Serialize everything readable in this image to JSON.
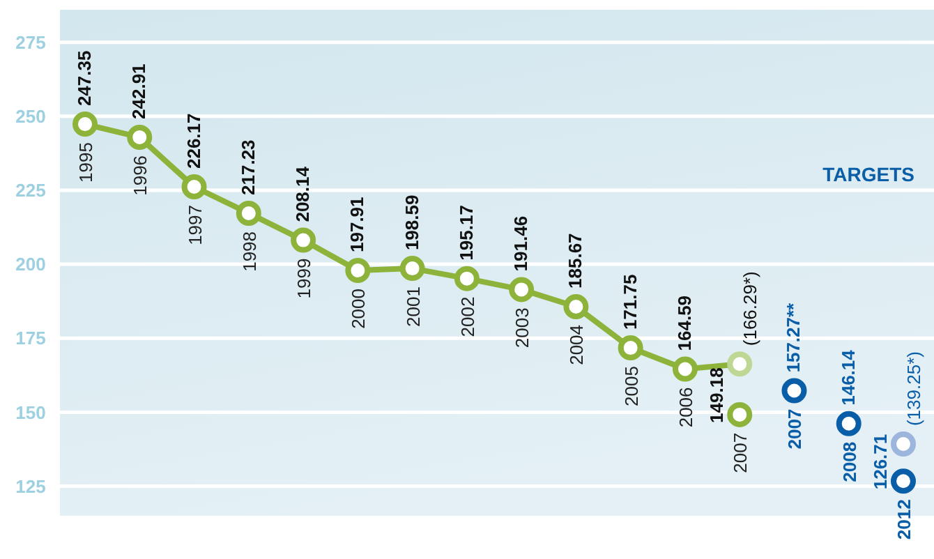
{
  "chart_data": {
    "type": "line",
    "categories": [
      "1995",
      "1996",
      "1997",
      "1998",
      "1999",
      "2000",
      "2001",
      "2002",
      "2003",
      "2004",
      "2005",
      "2006",
      "2007",
      "2007",
      "2008",
      "2012"
    ],
    "series": [
      {
        "color": "#8db33a",
        "colors": [
          "#8db33a",
          "#8db33a",
          "#8db33a",
          "#8db33a",
          "#8db33a",
          "#8db33a",
          "#8db33a",
          "#8db33a",
          "#8db33a",
          "#8db33a",
          "#8db33a",
          "#8db33a",
          "#bfd795",
          null,
          null,
          null
        ],
        "values": [
          247.35,
          242.91,
          226.17,
          217.23,
          208.14,
          197.91,
          198.59,
          195.17,
          191.46,
          185.67,
          171.75,
          164.59,
          166.29,
          null,
          null,
          null
        ],
        "value_labels": [
          "247.35",
          "242.91",
          "226.17",
          "217.23",
          "208.14",
          "197.91",
          "198.59",
          "195.17",
          "191.46",
          "185.67",
          "171.75",
          "164.59",
          "(166.29*)",
          null,
          null,
          null
        ]
      },
      {
        "type": "scatter",
        "color": "#8db33a",
        "values": [
          null,
          null,
          null,
          null,
          null,
          null,
          null,
          null,
          null,
          null,
          null,
          null,
          149.18,
          null,
          null,
          null
        ],
        "value_labels": [
          null,
          null,
          null,
          null,
          null,
          null,
          null,
          null,
          null,
          null,
          null,
          null,
          "149.18",
          null,
          null,
          null
        ]
      },
      {
        "type": "scatter",
        "color": "#0a5ea8",
        "values": [
          null,
          null,
          null,
          null,
          null,
          null,
          null,
          null,
          null,
          null,
          null,
          null,
          null,
          157.27,
          146.14,
          126.71
        ],
        "value_labels": [
          null,
          null,
          null,
          null,
          null,
          null,
          null,
          null,
          null,
          null,
          null,
          null,
          null,
          "157.27**",
          "146.14",
          "126.71"
        ]
      },
      {
        "type": "scatter",
        "color": "#9bb5dc",
        "values": [
          null,
          null,
          null,
          null,
          null,
          null,
          null,
          null,
          null,
          null,
          null,
          null,
          null,
          null,
          null,
          139.25
        ],
        "value_labels": [
          null,
          null,
          null,
          null,
          null,
          null,
          null,
          null,
          null,
          null,
          null,
          null,
          null,
          null,
          null,
          "(139.25*)"
        ]
      }
    ],
    "ylim": [
      115,
      286
    ],
    "yticks": [
      125,
      150,
      175,
      200,
      225,
      250,
      275
    ],
    "grid": "y",
    "marker": "circle",
    "annotations": [
      "TARGETS"
    ]
  }
}
